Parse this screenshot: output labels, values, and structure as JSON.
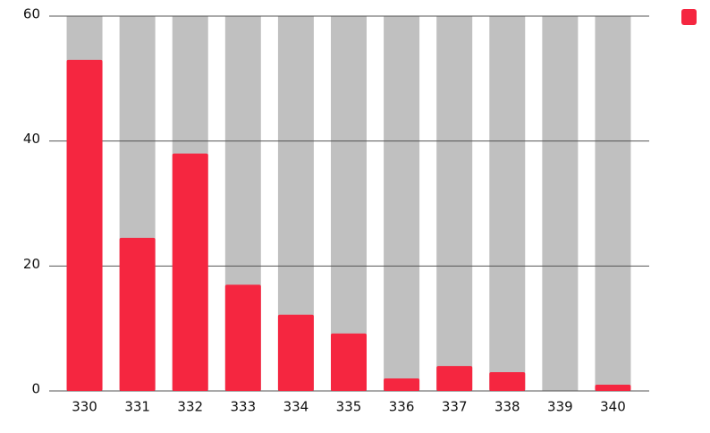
{
  "chart_data": {
    "type": "bar",
    "categories": [
      "330",
      "331",
      "332",
      "333",
      "334",
      "335",
      "336",
      "337",
      "338",
      "339",
      "340"
    ],
    "series": [
      {
        "color": "#f52640",
        "values": [
          53,
          24.5,
          38,
          17,
          12.2,
          9.2,
          2,
          4,
          3,
          0,
          1
        ]
      }
    ],
    "track_color": "#c0c0c0",
    "ylim": [
      0,
      60
    ],
    "yticks": [
      0,
      20,
      40,
      60
    ],
    "grid": true,
    "legend": "top-right"
  }
}
